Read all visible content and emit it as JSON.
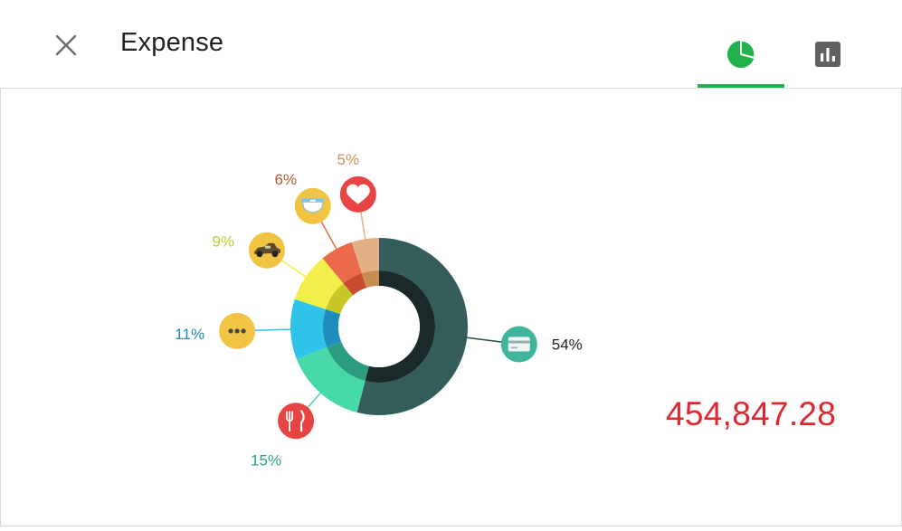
{
  "header": {
    "title": "Expense",
    "tabs": [
      {
        "icon": "pie-chart-icon",
        "active": true,
        "color": "#22b24c"
      },
      {
        "icon": "bar-chart-icon",
        "active": false,
        "color": "#616161"
      }
    ]
  },
  "total": {
    "value": "454,847.28",
    "color": "#e0262e"
  },
  "chart_data": {
    "type": "pie",
    "variant": "donut",
    "legend": "icon callouts",
    "slices": [
      {
        "name": "card",
        "icon": "credit-card-icon",
        "value": 54,
        "label": "54%",
        "color": "#335c5a",
        "inner": "#1a2a2a",
        "labelColor": "#222222",
        "iconBg": "#3fb59c"
      },
      {
        "name": "food",
        "icon": "fork-knife-icon",
        "value": 15,
        "label": "15%",
        "color": "#47d9a8",
        "inner": "#2c9c80",
        "labelColor": "#2ba38a",
        "iconBg": "#e84444"
      },
      {
        "name": "other",
        "icon": "more-dots-icon",
        "value": 11,
        "label": "11%",
        "color": "#2ec4ea",
        "inner": "#1f8dbb",
        "labelColor": "#2288b8",
        "iconBg": "#f2c444"
      },
      {
        "name": "car",
        "icon": "car-icon",
        "value": 9,
        "label": "9%",
        "color": "#f2ee4a",
        "inner": "#c7c825",
        "labelColor": "#c4cc2a",
        "iconBg": "#f2c444"
      },
      {
        "name": "baby",
        "icon": "diaper-icon",
        "value": 6,
        "label": "6%",
        "color": "#ec6a4c",
        "inner": "#c74d2e",
        "labelColor": "#b75a33",
        "iconBg": "#f2c444"
      },
      {
        "name": "health",
        "icon": "heart-icon",
        "value": 5,
        "label": "5%",
        "color": "#e3b084",
        "inner": "#c98d52",
        "labelColor": "#c99357",
        "iconBg": "#e84444"
      }
    ]
  }
}
